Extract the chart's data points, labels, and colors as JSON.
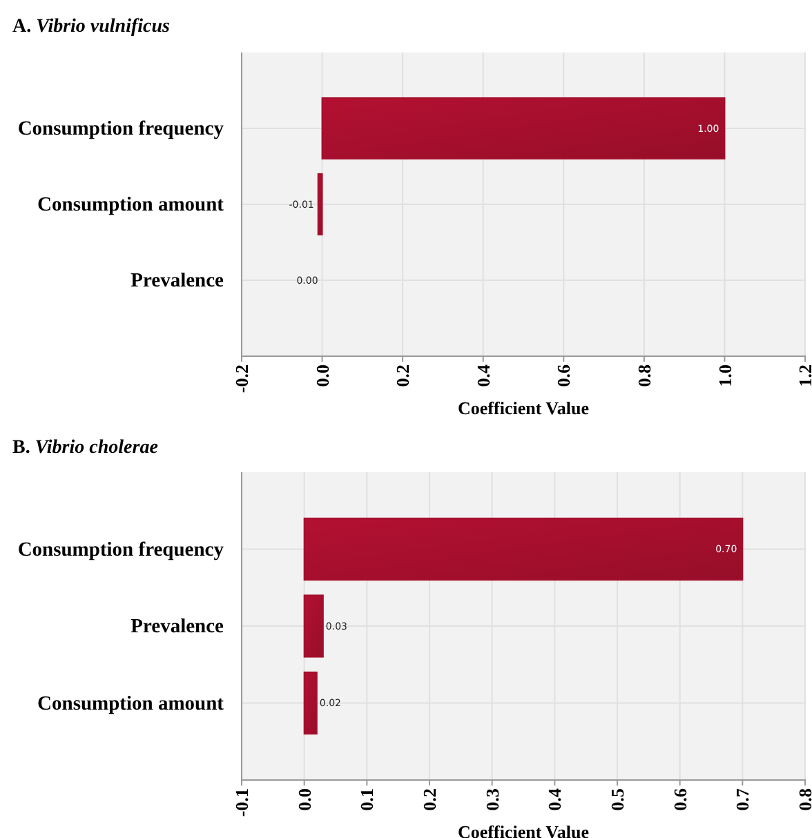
{
  "chart_data": [
    {
      "type": "bar",
      "orientation": "horizontal",
      "title": "A. Vibrio vulnificus",
      "xlabel": "Coefficient Value",
      "categories": [
        "Consumption frequency",
        "Consumption amount",
        "Prevalence"
      ],
      "series": [
        {
          "color": "#a50f2d",
          "values": [
            1.0,
            -0.01,
            0.0
          ],
          "value_labels": [
            "1.00",
            "-0.01",
            "0.00"
          ]
        }
      ],
      "xlim": [
        -0.2,
        1.2
      ],
      "xticks": [
        {
          "value": -0.2,
          "label": "-0.2"
        },
        {
          "value": 0,
          "label": "0.0"
        },
        {
          "value": 0.2,
          "label": "0.2"
        },
        {
          "value": 0.4,
          "label": "0.4"
        },
        {
          "value": 0.6,
          "label": "0.6"
        },
        {
          "value": 0.8,
          "label": "0.8"
        },
        {
          "value": 1.0,
          "label": "1.0"
        },
        {
          "value": 1.2,
          "label": "1.2"
        }
      ],
      "grid": true
    },
    {
      "type": "bar",
      "orientation": "horizontal",
      "title": "B. Vibrio cholerae",
      "xlabel": "Coefficient Value",
      "categories": [
        "Consumption frequency",
        "Prevalence",
        "Consumption amount"
      ],
      "series": [
        {
          "color": "#a50f2d",
          "values": [
            0.7,
            0.03,
            0.02
          ],
          "value_labels": [
            "0.70",
            "0.03",
            "0.02"
          ]
        }
      ],
      "xlim": [
        -0.1,
        0.8
      ],
      "xticks": [
        {
          "value": -0.1,
          "label": "-0.1"
        },
        {
          "value": 0,
          "label": "0.0"
        },
        {
          "value": 0.1,
          "label": "0.1"
        },
        {
          "value": 0.2,
          "label": "0.2"
        },
        {
          "value": 0.3,
          "label": "0.3"
        },
        {
          "value": 0.4,
          "label": "0.4"
        },
        {
          "value": 0.5,
          "label": "0.5"
        },
        {
          "value": 0.6,
          "label": "0.6"
        },
        {
          "value": 0.7,
          "label": "0.7"
        },
        {
          "value": 0.8,
          "label": "0.8"
        }
      ],
      "grid": true
    }
  ]
}
